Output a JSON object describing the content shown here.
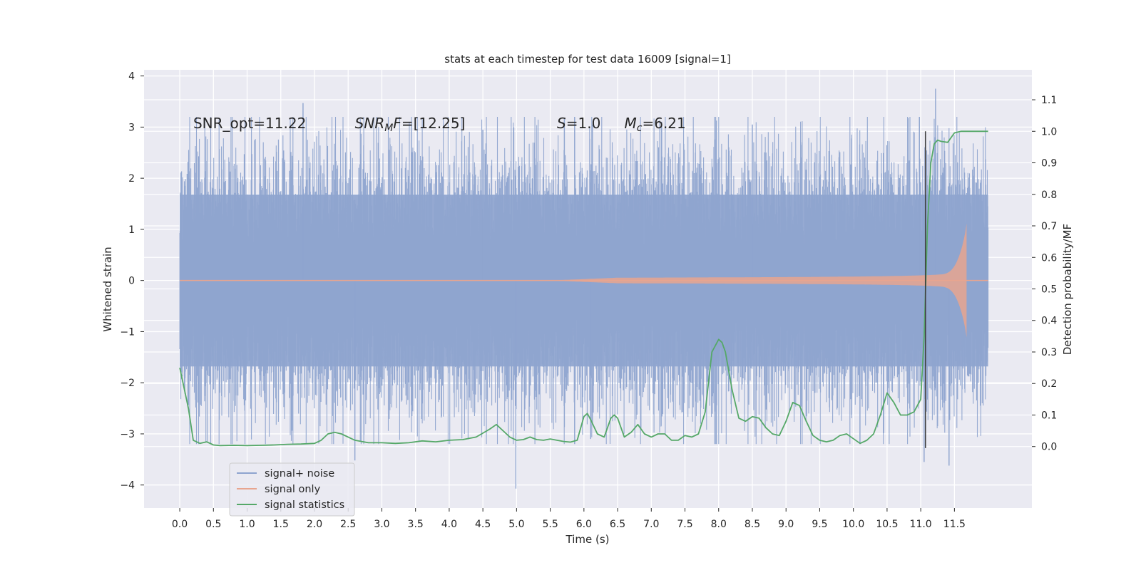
{
  "chart_data": {
    "type": "line",
    "title": "stats at each timestep for test data 16009 [signal=1]",
    "xlabel": "Time (s)",
    "ylabel": "Whitened strain",
    "y2label": "Detection probability/MF",
    "xlim": [
      -0.53,
      12.65
    ],
    "ylim": [
      -4.45,
      4.12
    ],
    "y2lim": [
      -0.195,
      1.195
    ],
    "xticks": [
      "0.0",
      "0.5",
      "1.0",
      "1.5",
      "2.0",
      "2.5",
      "3.0",
      "3.5",
      "4.0",
      "4.5",
      "5.0",
      "5.5",
      "6.0",
      "6.5",
      "7.0",
      "7.5",
      "8.0",
      "8.5",
      "9.0",
      "9.5",
      "10.0",
      "10.5",
      "11.0",
      "11.5"
    ],
    "yticks": [
      "−4",
      "−3",
      "−2",
      "−1",
      "0",
      "1",
      "2",
      "3",
      "4"
    ],
    "y2ticks": [
      "0.0",
      "0.1",
      "0.2",
      "0.3",
      "0.4",
      "0.5",
      "0.6",
      "0.7",
      "0.8",
      "0.9",
      "1.0",
      "1.1"
    ],
    "grid": true,
    "legend_position": "lower-left",
    "annotations": [
      {
        "parts": [
          {
            "t": "SNR_opt=11.22"
          }
        ],
        "x": 0.2,
        "y": 2.98
      },
      {
        "parts": [
          {
            "t": "SNR",
            "i": true
          },
          {
            "t": "M",
            "sub": true,
            "i": true
          },
          {
            "t": "F",
            "i": true
          },
          {
            "t": "=[12.25]"
          }
        ],
        "x": 2.6,
        "y": 2.98
      },
      {
        "parts": [
          {
            "t": "S",
            "i": true
          },
          {
            "t": "=1.0"
          }
        ],
        "x": 5.6,
        "y": 2.98
      },
      {
        "parts": [
          {
            "t": "M",
            "i": true
          },
          {
            "t": "c",
            "sub": true,
            "i": true
          },
          {
            "t": "=6.21"
          }
        ],
        "x": 6.6,
        "y": 2.98
      }
    ],
    "marker_line": {
      "x": 11.07,
      "y2_from": -0.005,
      "y2_to": 1.0
    },
    "series": [
      {
        "name": "signal+ noise",
        "color": "#8ea4cf",
        "kind": "noise",
        "x_range": [
          0.0,
          12.0
        ],
        "envelope": 2.05,
        "extremes": [
          [
            1.83,
            3.47
          ],
          [
            11.22,
            3.75
          ],
          [
            11.05,
            -3.55
          ],
          [
            11.42,
            -3.62
          ],
          [
            2.6,
            -3.52
          ],
          [
            4.99,
            -4.07
          ],
          [
            10.98,
            3.2
          ],
          [
            8.5,
            3.05
          ],
          [
            4.5,
            2.95
          ],
          [
            6.1,
            -3.1
          ]
        ]
      },
      {
        "name": "signal only",
        "color": "#e8a58f",
        "kind": "chirp",
        "x_range": [
          0.0,
          12.0
        ],
        "merger": 11.68,
        "peak": 1.12
      },
      {
        "name": "signal statistics",
        "color": "#55a868",
        "kind": "line",
        "axis": "right",
        "x": [
          0.0,
          0.1,
          0.13,
          0.2,
          0.3,
          0.4,
          0.5,
          0.6,
          0.8,
          1.0,
          1.2,
          1.4,
          1.6,
          1.8,
          2.0,
          2.1,
          2.2,
          2.3,
          2.4,
          2.5,
          2.6,
          2.8,
          3.0,
          3.2,
          3.4,
          3.6,
          3.8,
          4.0,
          4.2,
          4.4,
          4.6,
          4.7,
          4.8,
          4.9,
          5.0,
          5.1,
          5.2,
          5.3,
          5.4,
          5.5,
          5.6,
          5.7,
          5.8,
          5.9,
          6.0,
          6.05,
          6.1,
          6.2,
          6.3,
          6.4,
          6.45,
          6.5,
          6.55,
          6.6,
          6.7,
          6.8,
          6.9,
          7.0,
          7.1,
          7.2,
          7.3,
          7.4,
          7.5,
          7.6,
          7.7,
          7.8,
          7.9,
          8.0,
          8.05,
          8.1,
          8.2,
          8.3,
          8.4,
          8.5,
          8.6,
          8.7,
          8.8,
          8.9,
          9.0,
          9.1,
          9.2,
          9.3,
          9.4,
          9.5,
          9.6,
          9.7,
          9.8,
          9.9,
          10.0,
          10.1,
          10.2,
          10.3,
          10.4,
          10.5,
          10.6,
          10.7,
          10.8,
          10.9,
          11.0,
          11.05,
          11.1,
          11.15,
          11.2,
          11.25,
          11.3,
          11.4,
          11.5,
          11.6,
          11.7,
          11.8,
          12.0
        ],
        "y": [
          0.25,
          0.15,
          0.12,
          0.02,
          0.01,
          0.015,
          0.005,
          0.003,
          0.004,
          0.003,
          0.004,
          0.005,
          0.007,
          0.008,
          0.01,
          0.02,
          0.04,
          0.045,
          0.04,
          0.03,
          0.02,
          0.012,
          0.012,
          0.01,
          0.012,
          0.018,
          0.015,
          0.02,
          0.022,
          0.03,
          0.055,
          0.07,
          0.05,
          0.03,
          0.02,
          0.022,
          0.03,
          0.022,
          0.02,
          0.024,
          0.02,
          0.016,
          0.014,
          0.02,
          0.095,
          0.105,
          0.085,
          0.04,
          0.03,
          0.09,
          0.1,
          0.09,
          0.06,
          0.03,
          0.045,
          0.07,
          0.04,
          0.03,
          0.04,
          0.04,
          0.02,
          0.02,
          0.035,
          0.03,
          0.04,
          0.11,
          0.3,
          0.34,
          0.33,
          0.3,
          0.18,
          0.09,
          0.08,
          0.095,
          0.09,
          0.06,
          0.04,
          0.035,
          0.08,
          0.14,
          0.13,
          0.08,
          0.035,
          0.02,
          0.015,
          0.02,
          0.035,
          0.04,
          0.025,
          0.01,
          0.02,
          0.04,
          0.1,
          0.17,
          0.14,
          0.1,
          0.1,
          0.11,
          0.15,
          0.35,
          0.7,
          0.9,
          0.96,
          0.972,
          0.968,
          0.965,
          0.995,
          1.0,
          1.0,
          1.0,
          1.0
        ]
      }
    ]
  }
}
